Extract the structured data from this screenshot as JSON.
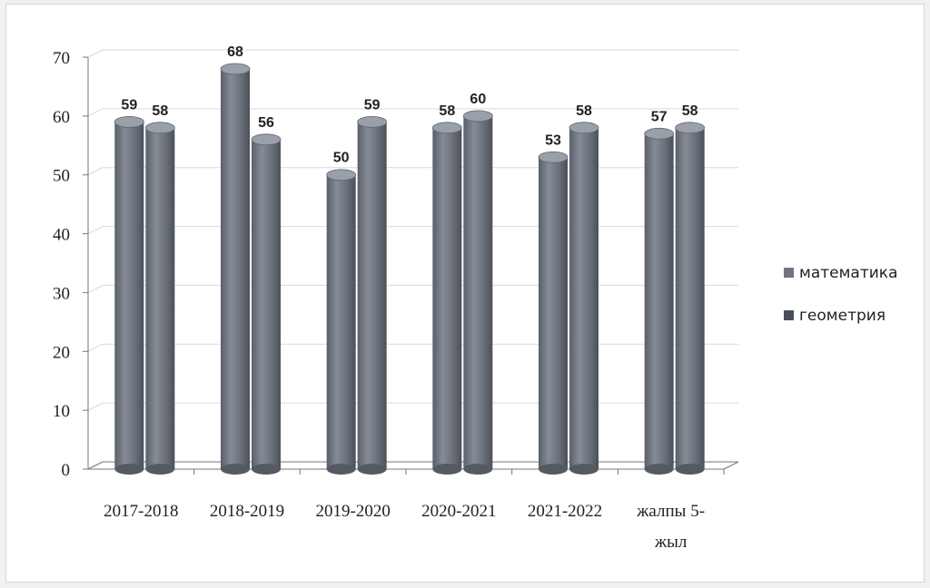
{
  "chart_data": {
    "type": "bar",
    "style": "3d-cylinder",
    "categories": [
      "2017-2018",
      "2018-2019",
      "2019-2020",
      "2020-2021",
      "2021-2022",
      "жалпы 5-жыл"
    ],
    "category_lines": [
      [
        "2017-2018"
      ],
      [
        "2018-2019"
      ],
      [
        "2019-2020"
      ],
      [
        "2020-2021"
      ],
      [
        "2021-2022"
      ],
      [
        "жалпы 5-",
        "жыл"
      ]
    ],
    "series": [
      {
        "name": "математика",
        "values": [
          59,
          68,
          50,
          58,
          53,
          57
        ]
      },
      {
        "name": "геометрия",
        "values": [
          58,
          56,
          59,
          60,
          58,
          58
        ]
      }
    ],
    "yticks": [
      0,
      10,
      20,
      30,
      40,
      50,
      60,
      70
    ],
    "ylim": [
      0,
      70
    ],
    "title": "",
    "xlabel": "",
    "ylabel": "",
    "grid": true,
    "legend_position": "right",
    "colors": {
      "bar": "#6f7580",
      "bar_dark": "#4a4f57",
      "bar_light": "#9aa0aa",
      "grid": "#d9d9d9",
      "axis": "#777777"
    }
  }
}
